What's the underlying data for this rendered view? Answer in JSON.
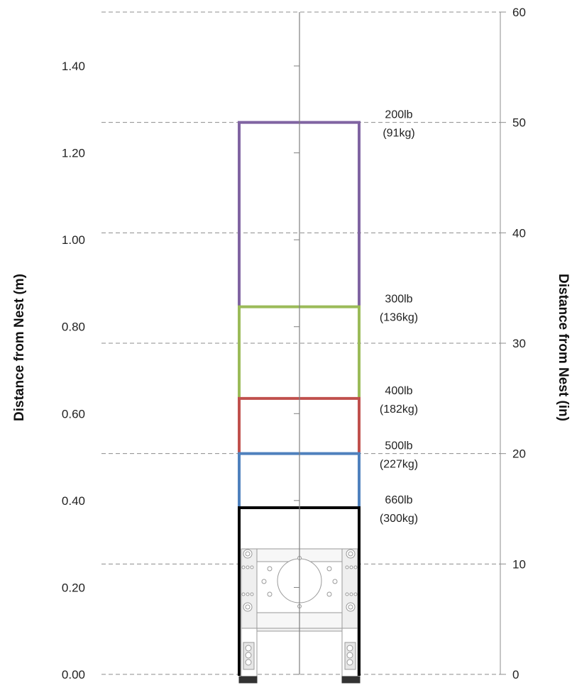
{
  "chart_data": {
    "type": "area",
    "y_left": {
      "label": "Distance from Nest (m)",
      "range": [
        0,
        1.524
      ],
      "ticks": [
        "0.00",
        "0.20",
        "0.40",
        "0.60",
        "0.80",
        "1.00",
        "1.20",
        "1.40"
      ]
    },
    "y_right": {
      "label": "Distance from Nest (in)",
      "range": [
        0,
        60
      ],
      "ticks": [
        "0",
        "10",
        "20",
        "30",
        "40",
        "50",
        "60"
      ]
    },
    "grid": "dashed horizontal lines at right-axis ticks",
    "loads": [
      {
        "weight": "200lb",
        "mass": "(91kg)",
        "height_in": 50.0,
        "color": "#8064a2"
      },
      {
        "weight": "300lb",
        "mass": "(136kg)",
        "height_in": 33.3,
        "color": "#9bbb59"
      },
      {
        "weight": "400lb",
        "mass": "(182kg)",
        "height_in": 25.0,
        "color": "#c0504d"
      },
      {
        "weight": "500lb",
        "mass": "(227kg)",
        "height_in": 20.0,
        "color": "#4f81bd"
      },
      {
        "weight": "660lb",
        "mass": "(300kg)",
        "height_in": 15.1,
        "color": "#000000"
      }
    ]
  }
}
